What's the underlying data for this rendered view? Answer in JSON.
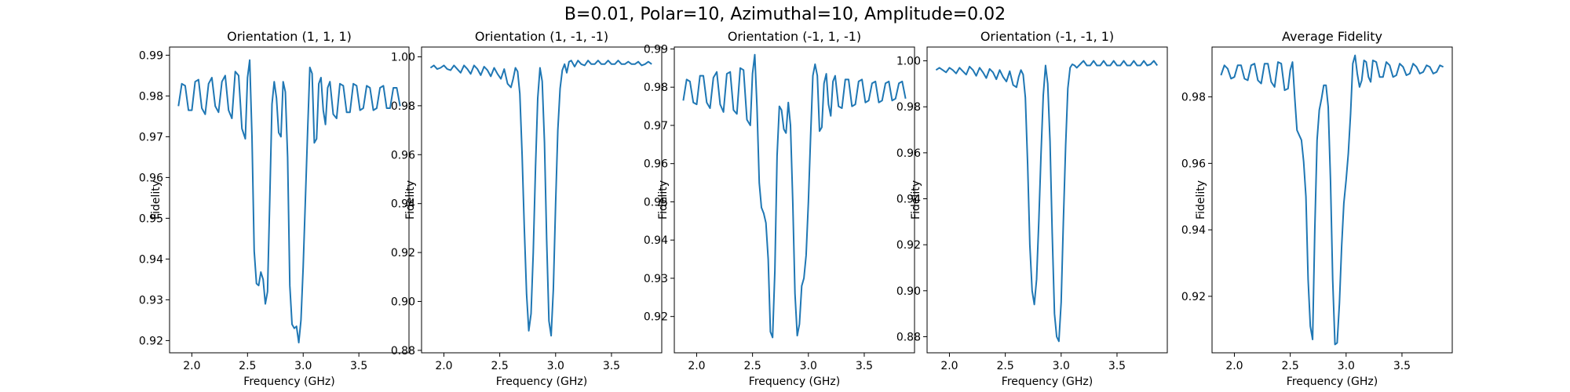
{
  "figure": {
    "title": "B=0.01, Polar=10, Azimuthal=10, Amplitude=0.02"
  },
  "colors": {
    "line": "#1f77b4",
    "axes": "#000000",
    "background": "#ffffff"
  },
  "chart_data": [
    {
      "type": "line",
      "title": "Orientation (1, 1, 1)",
      "xlabel": "Frequency (GHz)",
      "ylabel": "Fidelity",
      "xlim": [
        1.8,
        3.95
      ],
      "ylim": [
        0.917,
        0.992
      ],
      "xticks": [
        2.0,
        2.5,
        3.0,
        3.5
      ],
      "xtick_labels": [
        "2.0",
        "2.5",
        "3.0",
        "3.5"
      ],
      "yticks": [
        0.92,
        0.93,
        0.94,
        0.95,
        0.96,
        0.97,
        0.98,
        0.99
      ],
      "ytick_labels": [
        "0.92",
        "0.93",
        "0.94",
        "0.95",
        "0.96",
        "0.97",
        "0.98",
        "0.99"
      ],
      "grid": false,
      "series": [
        {
          "x": [
            1.88,
            1.91,
            1.94,
            1.97,
            2.0,
            2.03,
            2.06,
            2.09,
            2.12,
            2.15,
            2.18,
            2.21,
            2.24,
            2.27,
            2.3,
            2.33,
            2.36,
            2.39,
            2.42,
            2.45,
            2.48,
            2.5,
            2.52,
            2.54,
            2.56,
            2.58,
            2.6,
            2.62,
            2.64,
            2.66,
            2.68,
            2.7,
            2.72,
            2.74,
            2.76,
            2.78,
            2.8,
            2.82,
            2.84,
            2.86,
            2.88,
            2.9,
            2.92,
            2.94,
            2.96,
            2.98,
            3.0,
            3.02,
            3.04,
            3.06,
            3.08,
            3.1,
            3.12,
            3.14,
            3.16,
            3.18,
            3.2,
            3.22,
            3.24,
            3.27,
            3.3,
            3.33,
            3.36,
            3.39,
            3.42,
            3.45,
            3.48,
            3.51,
            3.54,
            3.57,
            3.6,
            3.63,
            3.66,
            3.69,
            3.72,
            3.75,
            3.78,
            3.81,
            3.84,
            3.87
          ],
          "y": [
            0.9775,
            0.983,
            0.9825,
            0.9765,
            0.9765,
            0.9835,
            0.984,
            0.977,
            0.9755,
            0.983,
            0.9845,
            0.9775,
            0.976,
            0.9835,
            0.985,
            0.9765,
            0.9745,
            0.986,
            0.985,
            0.972,
            0.9695,
            0.9845,
            0.9888,
            0.97,
            0.942,
            0.934,
            0.9335,
            0.9368,
            0.935,
            0.929,
            0.932,
            0.955,
            0.978,
            0.9835,
            0.9795,
            0.971,
            0.97,
            0.9835,
            0.981,
            0.965,
            0.9335,
            0.924,
            0.923,
            0.9235,
            0.9195,
            0.925,
            0.938,
            0.955,
            0.9715,
            0.987,
            0.9855,
            0.9685,
            0.9695,
            0.983,
            0.9845,
            0.9765,
            0.973,
            0.982,
            0.9835,
            0.9755,
            0.9745,
            0.983,
            0.9825,
            0.976,
            0.976,
            0.983,
            0.9825,
            0.9765,
            0.977,
            0.9825,
            0.982,
            0.9765,
            0.977,
            0.982,
            0.9825,
            0.977,
            0.977,
            0.982,
            0.982,
            0.9775
          ]
        }
      ]
    },
    {
      "type": "line",
      "title": "Orientation (1, -1, -1)",
      "xlabel": "Frequency (GHz)",
      "ylabel": "Fidelity",
      "xlim": [
        1.8,
        3.95
      ],
      "ylim": [
        0.879,
        1.004
      ],
      "xticks": [
        2.0,
        2.5,
        3.0,
        3.5
      ],
      "xtick_labels": [
        "2.0",
        "2.5",
        "3.0",
        "3.5"
      ],
      "yticks": [
        0.88,
        0.9,
        0.92,
        0.94,
        0.96,
        0.98,
        1.0
      ],
      "ytick_labels": [
        "0.88",
        "0.90",
        "0.92",
        "0.94",
        "0.96",
        "0.98",
        "1.00"
      ],
      "grid": false,
      "series": [
        {
          "x": [
            1.88,
            1.91,
            1.94,
            1.97,
            2.0,
            2.03,
            2.06,
            2.09,
            2.12,
            2.15,
            2.18,
            2.21,
            2.24,
            2.27,
            2.3,
            2.33,
            2.36,
            2.39,
            2.42,
            2.45,
            2.48,
            2.51,
            2.54,
            2.57,
            2.6,
            2.62,
            2.64,
            2.66,
            2.68,
            2.7,
            2.72,
            2.74,
            2.76,
            2.78,
            2.8,
            2.82,
            2.84,
            2.86,
            2.88,
            2.9,
            2.92,
            2.94,
            2.96,
            2.98,
            3.0,
            3.02,
            3.04,
            3.06,
            3.08,
            3.1,
            3.12,
            3.14,
            3.17,
            3.2,
            3.23,
            3.26,
            3.29,
            3.32,
            3.35,
            3.38,
            3.41,
            3.44,
            3.47,
            3.5,
            3.53,
            3.56,
            3.59,
            3.62,
            3.65,
            3.68,
            3.71,
            3.74,
            3.77,
            3.8,
            3.83,
            3.86
          ],
          "y": [
            0.9955,
            0.9965,
            0.995,
            0.9955,
            0.9965,
            0.995,
            0.9945,
            0.9965,
            0.995,
            0.9935,
            0.9965,
            0.995,
            0.993,
            0.9965,
            0.995,
            0.9925,
            0.996,
            0.9945,
            0.992,
            0.9955,
            0.993,
            0.991,
            0.995,
            0.989,
            0.9875,
            0.991,
            0.9955,
            0.994,
            0.985,
            0.96,
            0.93,
            0.903,
            0.888,
            0.895,
            0.92,
            0.955,
            0.983,
            0.9955,
            0.99,
            0.965,
            0.925,
            0.892,
            0.886,
            0.905,
            0.94,
            0.97,
            0.987,
            0.9945,
            0.997,
            0.9935,
            0.998,
            0.9985,
            0.996,
            0.9985,
            0.997,
            0.9965,
            0.9985,
            0.997,
            0.997,
            0.9985,
            0.997,
            0.997,
            0.9985,
            0.997,
            0.997,
            0.9985,
            0.997,
            0.997,
            0.998,
            0.997,
            0.997,
            0.998,
            0.9965,
            0.997,
            0.998,
            0.997
          ]
        }
      ]
    },
    {
      "type": "line",
      "title": "Orientation (-1, 1, -1)",
      "xlabel": "Frequency (GHz)",
      "ylabel": "Fidelity",
      "xlim": [
        1.8,
        3.95
      ],
      "ylim": [
        0.9105,
        0.9905
      ],
      "xticks": [
        2.0,
        2.5,
        3.0,
        3.5
      ],
      "xtick_labels": [
        "2.0",
        "2.5",
        "3.0",
        "3.5"
      ],
      "yticks": [
        0.92,
        0.93,
        0.94,
        0.95,
        0.96,
        0.97,
        0.98,
        0.99
      ],
      "ytick_labels": [
        "0.92",
        "0.93",
        "0.94",
        "0.95",
        "0.96",
        "0.97",
        "0.98",
        "0.99"
      ],
      "grid": false,
      "series": [
        {
          "x": [
            1.88,
            1.91,
            1.94,
            1.97,
            2.0,
            2.03,
            2.06,
            2.09,
            2.12,
            2.15,
            2.18,
            2.21,
            2.24,
            2.27,
            2.3,
            2.33,
            2.36,
            2.39,
            2.42,
            2.45,
            2.48,
            2.5,
            2.52,
            2.54,
            2.56,
            2.58,
            2.6,
            2.62,
            2.64,
            2.66,
            2.68,
            2.7,
            2.72,
            2.74,
            2.76,
            2.78,
            2.8,
            2.82,
            2.84,
            2.86,
            2.88,
            2.9,
            2.92,
            2.94,
            2.96,
            2.98,
            3.0,
            3.02,
            3.04,
            3.06,
            3.08,
            3.1,
            3.12,
            3.14,
            3.16,
            3.18,
            3.2,
            3.22,
            3.24,
            3.27,
            3.3,
            3.33,
            3.36,
            3.39,
            3.42,
            3.45,
            3.48,
            3.51,
            3.54,
            3.57,
            3.6,
            3.63,
            3.66,
            3.69,
            3.72,
            3.75,
            3.78,
            3.81,
            3.84,
            3.87
          ],
          "y": [
            0.9765,
            0.982,
            0.9815,
            0.976,
            0.9755,
            0.983,
            0.983,
            0.976,
            0.9745,
            0.9825,
            0.984,
            0.9755,
            0.9735,
            0.9835,
            0.984,
            0.974,
            0.973,
            0.985,
            0.9845,
            0.9715,
            0.97,
            0.9835,
            0.9885,
            0.975,
            0.955,
            0.9485,
            0.947,
            0.9445,
            0.935,
            0.916,
            0.9145,
            0.932,
            0.962,
            0.975,
            0.974,
            0.969,
            0.968,
            0.976,
            0.97,
            0.95,
            0.926,
            0.915,
            0.918,
            0.928,
            0.93,
            0.936,
            0.95,
            0.967,
            0.983,
            0.986,
            0.983,
            0.9685,
            0.9695,
            0.981,
            0.9835,
            0.9755,
            0.9725,
            0.9815,
            0.983,
            0.975,
            0.9745,
            0.982,
            0.982,
            0.975,
            0.9755,
            0.9815,
            0.982,
            0.976,
            0.9765,
            0.981,
            0.9815,
            0.976,
            0.9765,
            0.981,
            0.9815,
            0.9765,
            0.977,
            0.981,
            0.9815,
            0.977
          ]
        }
      ]
    },
    {
      "type": "line",
      "title": "Orientation (-1, -1, 1)",
      "xlabel": "Frequency (GHz)",
      "ylabel": "Fidelity",
      "xlim": [
        1.8,
        3.95
      ],
      "ylim": [
        0.873,
        1.006
      ],
      "xticks": [
        2.0,
        2.5,
        3.0,
        3.5
      ],
      "xtick_labels": [
        "2.0",
        "2.5",
        "3.0",
        "3.5"
      ],
      "yticks": [
        0.88,
        0.9,
        0.92,
        0.94,
        0.96,
        0.98,
        1.0
      ],
      "ytick_labels": [
        "0.88",
        "0.90",
        "0.92",
        "0.94",
        "0.96",
        "0.98",
        "1.00"
      ],
      "grid": false,
      "series": [
        {
          "x": [
            1.88,
            1.91,
            1.94,
            1.97,
            2.0,
            2.03,
            2.06,
            2.09,
            2.12,
            2.15,
            2.18,
            2.21,
            2.24,
            2.27,
            2.3,
            2.33,
            2.36,
            2.39,
            2.42,
            2.45,
            2.48,
            2.51,
            2.54,
            2.57,
            2.6,
            2.62,
            2.64,
            2.66,
            2.68,
            2.7,
            2.72,
            2.74,
            2.76,
            2.78,
            2.8,
            2.82,
            2.84,
            2.86,
            2.88,
            2.9,
            2.92,
            2.94,
            2.96,
            2.98,
            3.0,
            3.02,
            3.04,
            3.06,
            3.08,
            3.1,
            3.12,
            3.14,
            3.17,
            3.2,
            3.23,
            3.26,
            3.29,
            3.32,
            3.35,
            3.38,
            3.41,
            3.44,
            3.47,
            3.5,
            3.53,
            3.56,
            3.59,
            3.62,
            3.65,
            3.68,
            3.71,
            3.74,
            3.77,
            3.8,
            3.83,
            3.86
          ],
          "y": [
            0.996,
            0.997,
            0.996,
            0.995,
            0.997,
            0.996,
            0.9945,
            0.997,
            0.9955,
            0.994,
            0.9975,
            0.996,
            0.9935,
            0.997,
            0.995,
            0.9925,
            0.9965,
            0.995,
            0.992,
            0.996,
            0.993,
            0.991,
            0.9955,
            0.9895,
            0.9885,
            0.993,
            0.996,
            0.994,
            0.984,
            0.955,
            0.92,
            0.9,
            0.894,
            0.905,
            0.93,
            0.96,
            0.985,
            0.998,
            0.99,
            0.965,
            0.925,
            0.89,
            0.88,
            0.878,
            0.895,
            0.93,
            0.963,
            0.988,
            0.997,
            0.9985,
            0.998,
            0.997,
            0.9985,
            1.0,
            0.998,
            0.998,
            1.0,
            0.998,
            0.998,
            1.0,
            0.998,
            0.998,
            1.0,
            0.998,
            0.998,
            1.0,
            0.998,
            0.998,
            1.0,
            0.998,
            0.998,
            1.0,
            0.998,
            0.9985,
            1.0,
            0.998
          ]
        }
      ]
    },
    {
      "type": "line",
      "title": "Average Fidelity",
      "xlabel": "Frequency (GHz)",
      "ylabel": "Fidelity",
      "xlim": [
        1.8,
        3.95
      ],
      "ylim": [
        0.903,
        0.995
      ],
      "xticks": [
        2.0,
        2.5,
        3.0,
        3.5
      ],
      "xtick_labels": [
        "2.0",
        "2.5",
        "3.0",
        "3.5"
      ],
      "yticks": [
        0.92,
        0.94,
        0.96,
        0.98
      ],
      "ytick_labels": [
        "0.92",
        "0.94",
        "0.96",
        "0.98"
      ],
      "grid": false,
      "series": [
        {
          "x": [
            1.88,
            1.91,
            1.94,
            1.97,
            2.0,
            2.03,
            2.06,
            2.09,
            2.12,
            2.15,
            2.18,
            2.21,
            2.24,
            2.27,
            2.3,
            2.33,
            2.36,
            2.39,
            2.42,
            2.45,
            2.48,
            2.5,
            2.52,
            2.54,
            2.56,
            2.58,
            2.6,
            2.62,
            2.64,
            2.66,
            2.68,
            2.7,
            2.72,
            2.74,
            2.76,
            2.78,
            2.8,
            2.82,
            2.84,
            2.86,
            2.88,
            2.9,
            2.92,
            2.94,
            2.96,
            2.98,
            3.0,
            3.02,
            3.04,
            3.06,
            3.08,
            3.1,
            3.12,
            3.14,
            3.16,
            3.18,
            3.2,
            3.22,
            3.24,
            3.27,
            3.3,
            3.33,
            3.36,
            3.39,
            3.42,
            3.45,
            3.48,
            3.51,
            3.54,
            3.57,
            3.6,
            3.63,
            3.66,
            3.69,
            3.72,
            3.75,
            3.78,
            3.81,
            3.84,
            3.87
          ],
          "y": [
            0.9865,
            0.9895,
            0.9885,
            0.9855,
            0.986,
            0.9895,
            0.9895,
            0.9855,
            0.985,
            0.9895,
            0.99,
            0.985,
            0.984,
            0.99,
            0.99,
            0.9845,
            0.983,
            0.9905,
            0.99,
            0.982,
            0.9825,
            0.988,
            0.9905,
            0.98,
            0.97,
            0.9685,
            0.967,
            0.9605,
            0.95,
            0.925,
            0.911,
            0.907,
            0.94,
            0.967,
            0.976,
            0.9795,
            0.9835,
            0.9835,
            0.977,
            0.955,
            0.925,
            0.9055,
            0.906,
            0.918,
            0.935,
            0.948,
            0.955,
            0.963,
            0.975,
            0.99,
            0.9925,
            0.987,
            0.983,
            0.985,
            0.991,
            0.9905,
            0.986,
            0.9845,
            0.991,
            0.9905,
            0.986,
            0.986,
            0.9905,
            0.9895,
            0.986,
            0.9865,
            0.99,
            0.989,
            0.9865,
            0.987,
            0.99,
            0.989,
            0.987,
            0.9875,
            0.9895,
            0.989,
            0.987,
            0.9875,
            0.9895,
            0.989
          ]
        }
      ]
    }
  ]
}
